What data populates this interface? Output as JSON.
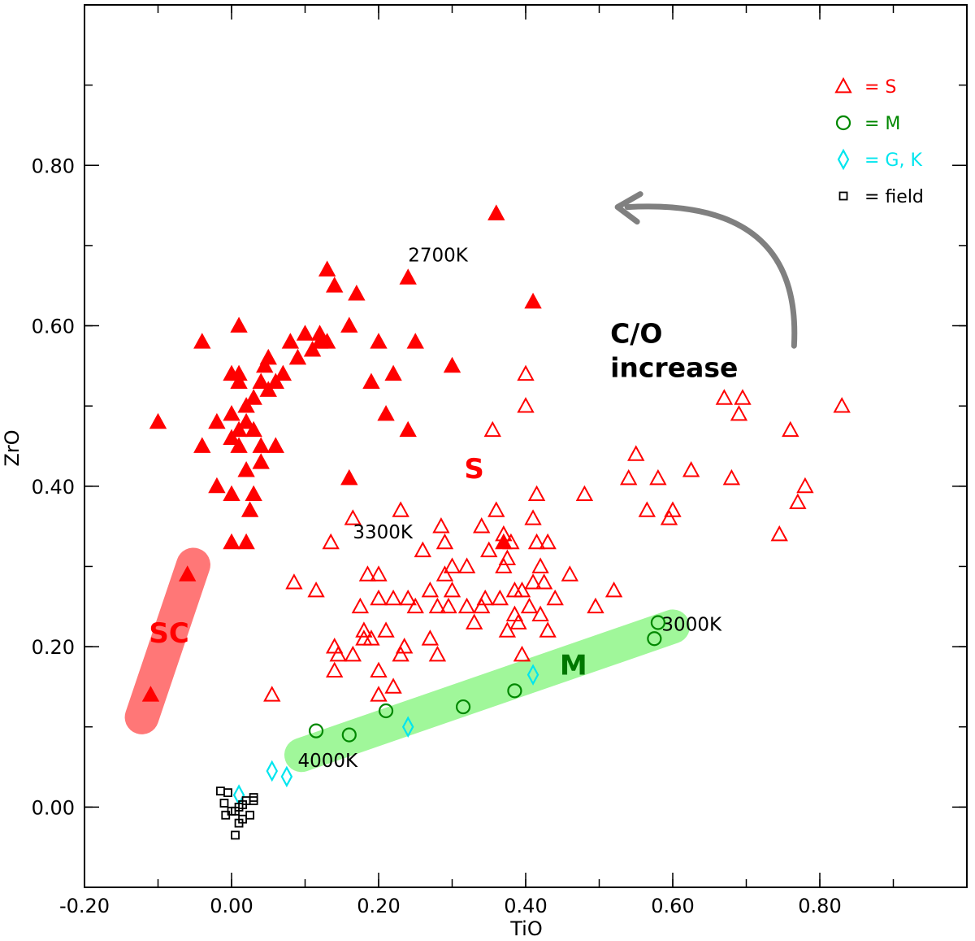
{
  "chart_data": {
    "type": "scatter",
    "xlabel": "TiO",
    "ylabel": "ZrO",
    "xlim": [
      -0.2,
      1.0
    ],
    "ylim": [
      -0.1,
      1.0
    ],
    "x_ticks": [
      -0.2,
      0.0,
      0.2,
      0.4,
      0.6,
      0.8
    ],
    "x_tick_labels": [
      "-0.20",
      "0.00",
      "0.20",
      "0.40",
      "0.60",
      "0.80"
    ],
    "y_ticks": [
      0.0,
      0.2,
      0.4,
      0.6,
      0.8
    ],
    "y_tick_labels": [
      "0.00",
      "0.20",
      "0.40",
      "0.60",
      "0.80"
    ],
    "legend": {
      "placement": "top-right",
      "entries": [
        {
          "symbol": "triangle",
          "color": "#ff0000",
          "label": "= S"
        },
        {
          "symbol": "circle",
          "color": "#008800",
          "label": "= M"
        },
        {
          "symbol": "diamond",
          "color": "#00e5ee",
          "label": "= G, K"
        },
        {
          "symbol": "square",
          "color": "#000000",
          "label": "= field"
        }
      ]
    },
    "region_labels": [
      {
        "text": "SC",
        "x": -0.085,
        "y": 0.205,
        "color": "#ff0000"
      },
      {
        "text": "S",
        "x": 0.33,
        "y": 0.41,
        "color": "#ff0000"
      },
      {
        "text": "M",
        "x": 0.465,
        "y": 0.165,
        "color": "#007700"
      }
    ],
    "temperature_labels": [
      {
        "text": "2700K",
        "x": 0.24,
        "y": 0.68
      },
      {
        "text": "3300K",
        "x": 0.165,
        "y": 0.335
      },
      {
        "text": "3000K",
        "x": 0.585,
        "y": 0.22
      },
      {
        "text": "4000K",
        "x": 0.09,
        "y": 0.05
      }
    ],
    "annotation": {
      "line1": "C/O",
      "line2": "increase",
      "x": 0.515,
      "y": 0.6,
      "arrow_from": [
        0.765,
        0.575
      ],
      "arrow_to": [
        0.525,
        0.75
      ]
    },
    "bands": [
      {
        "name": "SC band",
        "from": [
          -0.052,
          0.302
        ],
        "to": [
          -0.122,
          0.112
        ],
        "color": "#ff7777"
      },
      {
        "name": "M band",
        "from": [
          0.095,
          0.065
        ],
        "to": [
          0.6,
          0.225
        ],
        "color": "#a0f79a"
      }
    ],
    "series": [
      {
        "name": "S filled",
        "symbol": "triangle-filled",
        "color": "#ff0000",
        "points": [
          [
            -0.1,
            0.48
          ],
          [
            -0.04,
            0.58
          ],
          [
            -0.04,
            0.45
          ],
          [
            -0.02,
            0.48
          ],
          [
            -0.02,
            0.4
          ],
          [
            0.0,
            0.54
          ],
          [
            0.0,
            0.46
          ],
          [
            0.0,
            0.39
          ],
          [
            0.0,
            0.33
          ],
          [
            0.0,
            0.49
          ],
          [
            0.01,
            0.6
          ],
          [
            0.01,
            0.53
          ],
          [
            0.01,
            0.45
          ],
          [
            0.01,
            0.47
          ],
          [
            0.01,
            0.54
          ],
          [
            0.02,
            0.5
          ],
          [
            0.02,
            0.48
          ],
          [
            0.02,
            0.42
          ],
          [
            0.02,
            0.33
          ],
          [
            0.025,
            0.37
          ],
          [
            0.03,
            0.51
          ],
          [
            0.03,
            0.47
          ],
          [
            0.03,
            0.39
          ],
          [
            0.04,
            0.53
          ],
          [
            0.04,
            0.45
          ],
          [
            0.04,
            0.43
          ],
          [
            0.045,
            0.55
          ],
          [
            0.05,
            0.52
          ],
          [
            0.05,
            0.56
          ],
          [
            0.06,
            0.53
          ],
          [
            0.06,
            0.45
          ],
          [
            0.07,
            0.54
          ],
          [
            0.08,
            0.58
          ],
          [
            0.09,
            0.56
          ],
          [
            0.1,
            0.59
          ],
          [
            0.11,
            0.57
          ],
          [
            0.12,
            0.58
          ],
          [
            0.12,
            0.59
          ],
          [
            0.13,
            0.67
          ],
          [
            0.13,
            0.58
          ],
          [
            0.14,
            0.65
          ],
          [
            0.16,
            0.6
          ],
          [
            0.16,
            0.41
          ],
          [
            0.17,
            0.64
          ],
          [
            0.19,
            0.53
          ],
          [
            0.2,
            0.58
          ],
          [
            0.21,
            0.49
          ],
          [
            0.22,
            0.54
          ],
          [
            0.24,
            0.66
          ],
          [
            0.24,
            0.47
          ],
          [
            0.25,
            0.58
          ],
          [
            0.3,
            0.55
          ],
          [
            0.36,
            0.74
          ],
          [
            0.41,
            0.63
          ],
          [
            0.37,
            0.33
          ],
          [
            -0.06,
            0.29
          ],
          [
            -0.11,
            0.14
          ]
        ]
      },
      {
        "name": "S open",
        "symbol": "triangle",
        "color": "#ff0000",
        "points": [
          [
            0.055,
            0.14
          ],
          [
            0.085,
            0.28
          ],
          [
            0.115,
            0.27
          ],
          [
            0.135,
            0.33
          ],
          [
            0.14,
            0.2
          ],
          [
            0.14,
            0.17
          ],
          [
            0.145,
            0.19
          ],
          [
            0.165,
            0.19
          ],
          [
            0.165,
            0.36
          ],
          [
            0.175,
            0.25
          ],
          [
            0.18,
            0.22
          ],
          [
            0.18,
            0.21
          ],
          [
            0.185,
            0.29
          ],
          [
            0.19,
            0.21
          ],
          [
            0.2,
            0.29
          ],
          [
            0.2,
            0.26
          ],
          [
            0.2,
            0.17
          ],
          [
            0.2,
            0.14
          ],
          [
            0.21,
            0.22
          ],
          [
            0.22,
            0.26
          ],
          [
            0.22,
            0.15
          ],
          [
            0.23,
            0.37
          ],
          [
            0.23,
            0.19
          ],
          [
            0.235,
            0.2
          ],
          [
            0.24,
            0.26
          ],
          [
            0.25,
            0.25
          ],
          [
            0.26,
            0.32
          ],
          [
            0.27,
            0.21
          ],
          [
            0.27,
            0.27
          ],
          [
            0.28,
            0.25
          ],
          [
            0.28,
            0.19
          ],
          [
            0.285,
            0.35
          ],
          [
            0.29,
            0.29
          ],
          [
            0.29,
            0.33
          ],
          [
            0.295,
            0.25
          ],
          [
            0.3,
            0.3
          ],
          [
            0.3,
            0.27
          ],
          [
            0.32,
            0.25
          ],
          [
            0.32,
            0.3
          ],
          [
            0.33,
            0.23
          ],
          [
            0.34,
            0.25
          ],
          [
            0.34,
            0.35
          ],
          [
            0.345,
            0.26
          ],
          [
            0.35,
            0.32
          ],
          [
            0.355,
            0.47
          ],
          [
            0.36,
            0.37
          ],
          [
            0.365,
            0.26
          ],
          [
            0.37,
            0.3
          ],
          [
            0.37,
            0.34
          ],
          [
            0.375,
            0.31
          ],
          [
            0.375,
            0.22
          ],
          [
            0.38,
            0.33
          ],
          [
            0.385,
            0.27
          ],
          [
            0.385,
            0.24
          ],
          [
            0.39,
            0.23
          ],
          [
            0.395,
            0.27
          ],
          [
            0.395,
            0.19
          ],
          [
            0.4,
            0.5
          ],
          [
            0.4,
            0.54
          ],
          [
            0.405,
            0.25
          ],
          [
            0.41,
            0.36
          ],
          [
            0.41,
            0.28
          ],
          [
            0.415,
            0.33
          ],
          [
            0.415,
            0.39
          ],
          [
            0.42,
            0.24
          ],
          [
            0.42,
            0.3
          ],
          [
            0.425,
            0.28
          ],
          [
            0.43,
            0.33
          ],
          [
            0.43,
            0.22
          ],
          [
            0.44,
            0.26
          ],
          [
            0.46,
            0.29
          ],
          [
            0.48,
            0.39
          ],
          [
            0.495,
            0.25
          ],
          [
            0.52,
            0.27
          ],
          [
            0.54,
            0.41
          ],
          [
            0.55,
            0.44
          ],
          [
            0.565,
            0.37
          ],
          [
            0.58,
            0.41
          ],
          [
            0.595,
            0.36
          ],
          [
            0.6,
            0.37
          ],
          [
            0.625,
            0.42
          ],
          [
            0.67,
            0.51
          ],
          [
            0.68,
            0.41
          ],
          [
            0.69,
            0.49
          ],
          [
            0.695,
            0.51
          ],
          [
            0.745,
            0.34
          ],
          [
            0.76,
            0.47
          ],
          [
            0.77,
            0.38
          ],
          [
            0.78,
            0.4
          ],
          [
            0.83,
            0.5
          ]
        ]
      },
      {
        "name": "M",
        "symbol": "circle",
        "color": "#008800",
        "points": [
          [
            0.115,
            0.095
          ],
          [
            0.16,
            0.09
          ],
          [
            0.21,
            0.12
          ],
          [
            0.315,
            0.125
          ],
          [
            0.385,
            0.145
          ],
          [
            0.575,
            0.21
          ],
          [
            0.58,
            0.23
          ]
        ]
      },
      {
        "name": "G, K",
        "symbol": "diamond",
        "color": "#00e5ee",
        "points": [
          [
            0.01,
            0.015
          ],
          [
            0.055,
            0.045
          ],
          [
            0.075,
            0.038
          ],
          [
            0.24,
            0.1
          ],
          [
            0.41,
            0.165
          ]
        ]
      },
      {
        "name": "field",
        "symbol": "square",
        "color": "#000000",
        "points": [
          [
            -0.015,
            0.02
          ],
          [
            -0.01,
            0.005
          ],
          [
            -0.005,
            0.018
          ],
          [
            -0.008,
            -0.01
          ],
          [
            0.0,
            -0.005
          ],
          [
            0.005,
            -0.005
          ],
          [
            0.01,
            0.0
          ],
          [
            0.015,
            0.003
          ],
          [
            0.01,
            -0.02
          ],
          [
            0.015,
            -0.015
          ],
          [
            0.02,
            0.008
          ],
          [
            0.025,
            -0.01
          ],
          [
            0.03,
            0.008
          ],
          [
            0.03,
            0.012
          ],
          [
            0.005,
            -0.035
          ]
        ]
      }
    ]
  }
}
